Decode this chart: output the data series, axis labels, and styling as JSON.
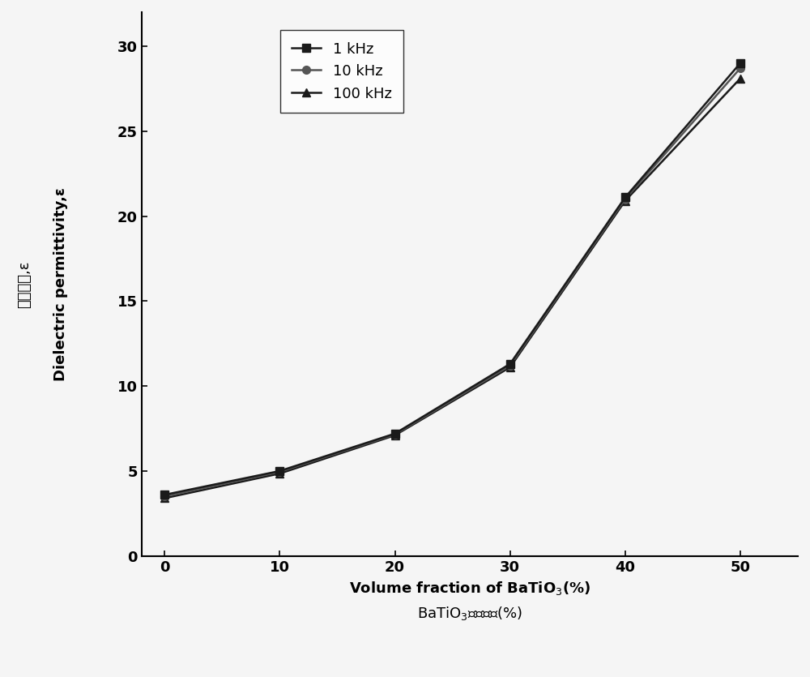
{
  "x": [
    0,
    10,
    20,
    30,
    40,
    50
  ],
  "series": [
    {
      "label": "1 kHz",
      "y": [
        3.6,
        5.0,
        7.2,
        11.3,
        21.1,
        29.0
      ],
      "color": "#1a1a1a",
      "marker": "s",
      "markersize": 7,
      "zorder": 3
    },
    {
      "label": "10 kHz",
      "y": [
        3.5,
        4.95,
        7.15,
        11.2,
        21.0,
        28.7
      ],
      "color": "#555555",
      "marker": "o",
      "markersize": 7,
      "zorder": 2
    },
    {
      "label": "100 kHz",
      "y": [
        3.4,
        4.85,
        7.1,
        11.1,
        20.9,
        28.1
      ],
      "color": "#1a1a1a",
      "marker": "^",
      "markersize": 7,
      "zorder": 1
    }
  ],
  "xlim": [
    -2,
    55
  ],
  "ylim": [
    0,
    32
  ],
  "xticks": [
    0,
    10,
    20,
    30,
    40,
    50
  ],
  "yticks": [
    0,
    5,
    10,
    15,
    20,
    25,
    30
  ],
  "xlabel_en": "Volume fraction of BaTiO$_3$(%)",
  "xlabel_cn": "BaTiO$_3$体积分数(%)",
  "ylabel_cn": "介电常数,ε",
  "ylabel_en": "Dielectric permittivity,ε",
  "line_width": 1.8,
  "background_color": "#f5f5f5",
  "figure_facecolor": "#f5f5f5",
  "tick_fontsize": 13,
  "label_fontsize": 13
}
